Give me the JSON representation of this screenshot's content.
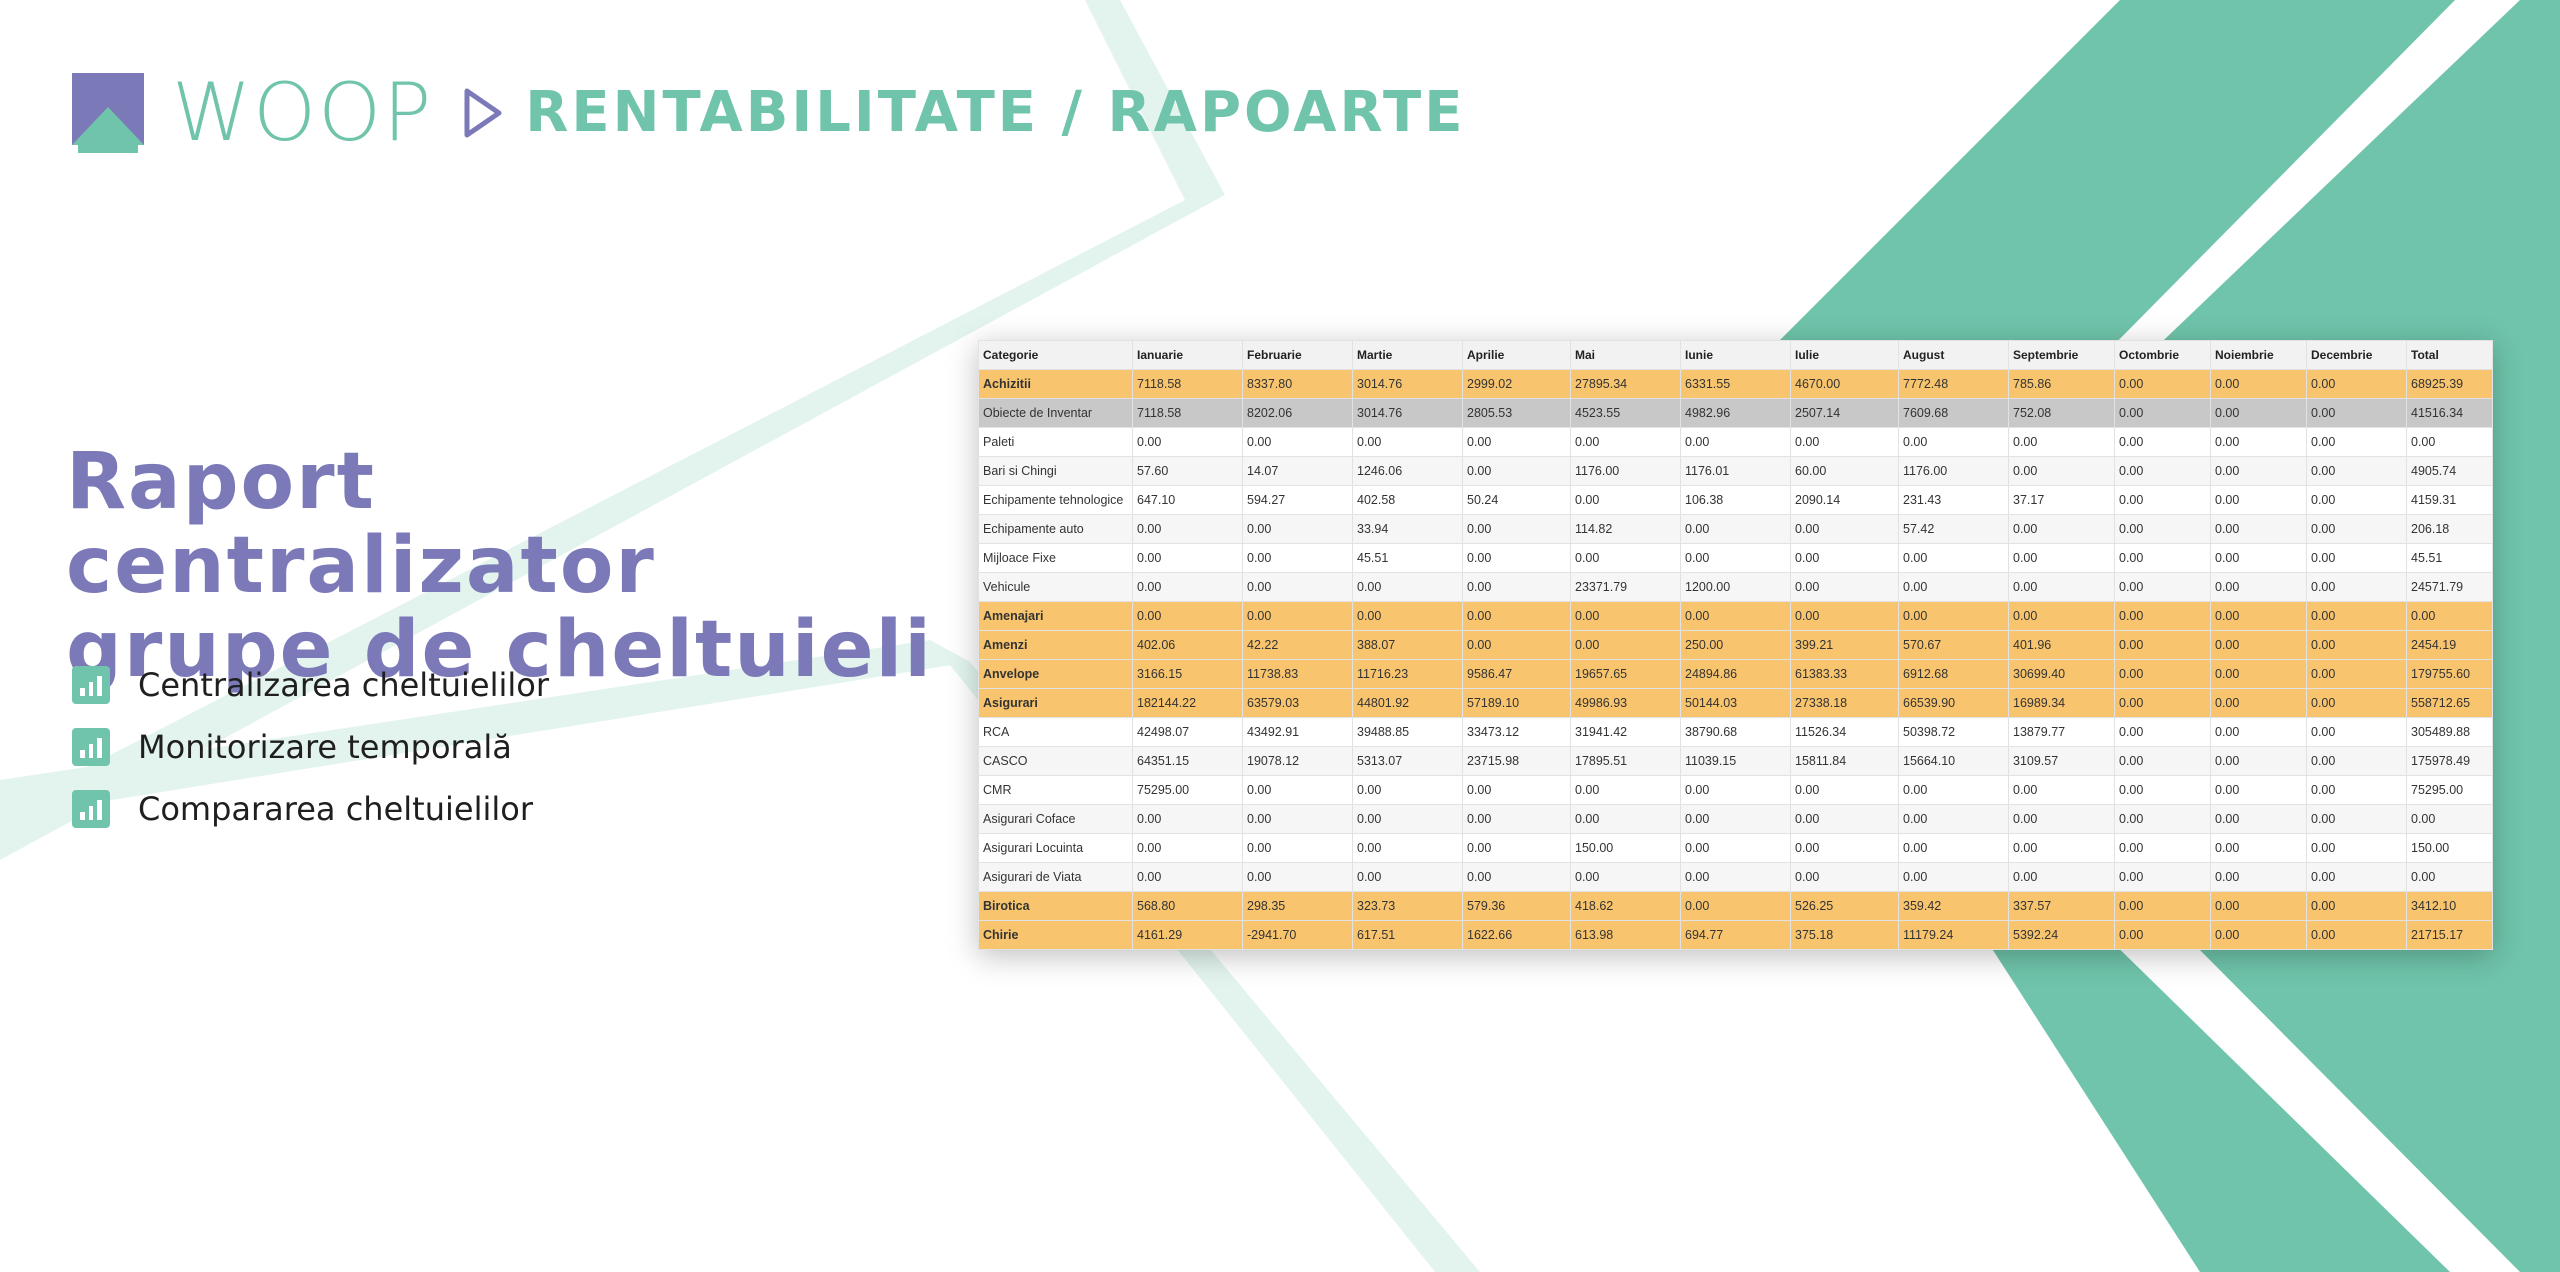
{
  "colors": {
    "purple": "#7b79b8",
    "green": "#6fc4ab",
    "green_light": "#e3f4ee",
    "category_row": "#f8c56e",
    "highlight_row": "#c8c8c8",
    "row_alt": "#f6f6f6"
  },
  "header": {
    "logo_icon": "house-square-icon",
    "brand": "WOOP",
    "separator_icon": "play-arrow-icon",
    "section": "RENTABILITATE / RAPOARTE"
  },
  "hero": {
    "title_line1": "Raport centralizator",
    "title_line2": "grupe de cheltuieli"
  },
  "features": [
    {
      "icon": "bar-chart-icon",
      "label": "Centralizarea cheltuielilor"
    },
    {
      "icon": "bar-chart-icon",
      "label": "Monitorizare temporală"
    },
    {
      "icon": "bar-chart-icon",
      "label": "Compararea cheltuielilor"
    }
  ],
  "table": {
    "columns": [
      "Categorie",
      "Ianuarie",
      "Februarie",
      "Martie",
      "Aprilie",
      "Mai",
      "Iunie",
      "Iulie",
      "August",
      "Septembrie",
      "Octombrie",
      "Noiembrie",
      "Decembrie",
      "Total"
    ],
    "rows": [
      {
        "style": "cat",
        "cells": [
          "Achizitii",
          "7118.58",
          "8337.80",
          "3014.76",
          "2999.02",
          "27895.34",
          "6331.55",
          "4670.00",
          "7772.48",
          "785.86",
          "0.00",
          "0.00",
          "0.00",
          "68925.39"
        ]
      },
      {
        "style": "hl",
        "cells": [
          "Obiecte de Inventar",
          "7118.58",
          "8202.06",
          "3014.76",
          "2805.53",
          "4523.55",
          "4982.96",
          "2507.14",
          "7609.68",
          "752.08",
          "0.00",
          "0.00",
          "0.00",
          "41516.34"
        ]
      },
      {
        "style": "sub",
        "cells": [
          "Paleti",
          "0.00",
          "0.00",
          "0.00",
          "0.00",
          "0.00",
          "0.00",
          "0.00",
          "0.00",
          "0.00",
          "0.00",
          "0.00",
          "0.00",
          "0.00"
        ]
      },
      {
        "style": "sub",
        "cells": [
          "Bari si Chingi",
          "57.60",
          "14.07",
          "1246.06",
          "0.00",
          "1176.00",
          "1176.01",
          "60.00",
          "1176.00",
          "0.00",
          "0.00",
          "0.00",
          "0.00",
          "4905.74"
        ]
      },
      {
        "style": "sub",
        "cells": [
          "Echipamente tehnologice",
          "647.10",
          "594.27",
          "402.58",
          "50.24",
          "0.00",
          "106.38",
          "2090.14",
          "231.43",
          "37.17",
          "0.00",
          "0.00",
          "0.00",
          "4159.31"
        ]
      },
      {
        "style": "sub",
        "cells": [
          "Echipamente auto",
          "0.00",
          "0.00",
          "33.94",
          "0.00",
          "114.82",
          "0.00",
          "0.00",
          "57.42",
          "0.00",
          "0.00",
          "0.00",
          "0.00",
          "206.18"
        ]
      },
      {
        "style": "sub",
        "cells": [
          "Mijloace Fixe",
          "0.00",
          "0.00",
          "45.51",
          "0.00",
          "0.00",
          "0.00",
          "0.00",
          "0.00",
          "0.00",
          "0.00",
          "0.00",
          "0.00",
          "45.51"
        ]
      },
      {
        "style": "sub",
        "cells": [
          "Vehicule",
          "0.00",
          "0.00",
          "0.00",
          "0.00",
          "23371.79",
          "1200.00",
          "0.00",
          "0.00",
          "0.00",
          "0.00",
          "0.00",
          "0.00",
          "24571.79"
        ]
      },
      {
        "style": "cat",
        "cells": [
          "Amenajari",
          "0.00",
          "0.00",
          "0.00",
          "0.00",
          "0.00",
          "0.00",
          "0.00",
          "0.00",
          "0.00",
          "0.00",
          "0.00",
          "0.00",
          "0.00"
        ]
      },
      {
        "style": "cat",
        "cells": [
          "Amenzi",
          "402.06",
          "42.22",
          "388.07",
          "0.00",
          "0.00",
          "250.00",
          "399.21",
          "570.67",
          "401.96",
          "0.00",
          "0.00",
          "0.00",
          "2454.19"
        ]
      },
      {
        "style": "cat",
        "cells": [
          "Anvelope",
          "3166.15",
          "11738.83",
          "11716.23",
          "9586.47",
          "19657.65",
          "24894.86",
          "61383.33",
          "6912.68",
          "30699.40",
          "0.00",
          "0.00",
          "0.00",
          "179755.60"
        ]
      },
      {
        "style": "cat",
        "cells": [
          "Asigurari",
          "182144.22",
          "63579.03",
          "44801.92",
          "57189.10",
          "49986.93",
          "50144.03",
          "27338.18",
          "66539.90",
          "16989.34",
          "0.00",
          "0.00",
          "0.00",
          "558712.65"
        ]
      },
      {
        "style": "sub",
        "cells": [
          "RCA",
          "42498.07",
          "43492.91",
          "39488.85",
          "33473.12",
          "31941.42",
          "38790.68",
          "11526.34",
          "50398.72",
          "13879.77",
          "0.00",
          "0.00",
          "0.00",
          "305489.88"
        ]
      },
      {
        "style": "sub",
        "cells": [
          "CASCO",
          "64351.15",
          "19078.12",
          "5313.07",
          "23715.98",
          "17895.51",
          "11039.15",
          "15811.84",
          "15664.10",
          "3109.57",
          "0.00",
          "0.00",
          "0.00",
          "175978.49"
        ]
      },
      {
        "style": "sub",
        "cells": [
          "CMR",
          "75295.00",
          "0.00",
          "0.00",
          "0.00",
          "0.00",
          "0.00",
          "0.00",
          "0.00",
          "0.00",
          "0.00",
          "0.00",
          "0.00",
          "75295.00"
        ]
      },
      {
        "style": "sub",
        "cells": [
          "Asigurari Coface",
          "0.00",
          "0.00",
          "0.00",
          "0.00",
          "0.00",
          "0.00",
          "0.00",
          "0.00",
          "0.00",
          "0.00",
          "0.00",
          "0.00",
          "0.00"
        ]
      },
      {
        "style": "sub",
        "cells": [
          "Asigurari Locuinta",
          "0.00",
          "0.00",
          "0.00",
          "0.00",
          "150.00",
          "0.00",
          "0.00",
          "0.00",
          "0.00",
          "0.00",
          "0.00",
          "0.00",
          "150.00"
        ]
      },
      {
        "style": "sub",
        "cells": [
          "Asigurari de Viata",
          "0.00",
          "0.00",
          "0.00",
          "0.00",
          "0.00",
          "0.00",
          "0.00",
          "0.00",
          "0.00",
          "0.00",
          "0.00",
          "0.00",
          "0.00"
        ]
      },
      {
        "style": "cat",
        "cells": [
          "Birotica",
          "568.80",
          "298.35",
          "323.73",
          "579.36",
          "418.62",
          "0.00",
          "526.25",
          "359.42",
          "337.57",
          "0.00",
          "0.00",
          "0.00",
          "3412.10"
        ]
      },
      {
        "style": "cat",
        "cells": [
          "Chirie",
          "4161.29",
          "-2941.70",
          "617.51",
          "1622.66",
          "613.98",
          "694.77",
          "375.18",
          "11179.24",
          "5392.24",
          "0.00",
          "0.00",
          "0.00",
          "21715.17"
        ]
      }
    ]
  }
}
